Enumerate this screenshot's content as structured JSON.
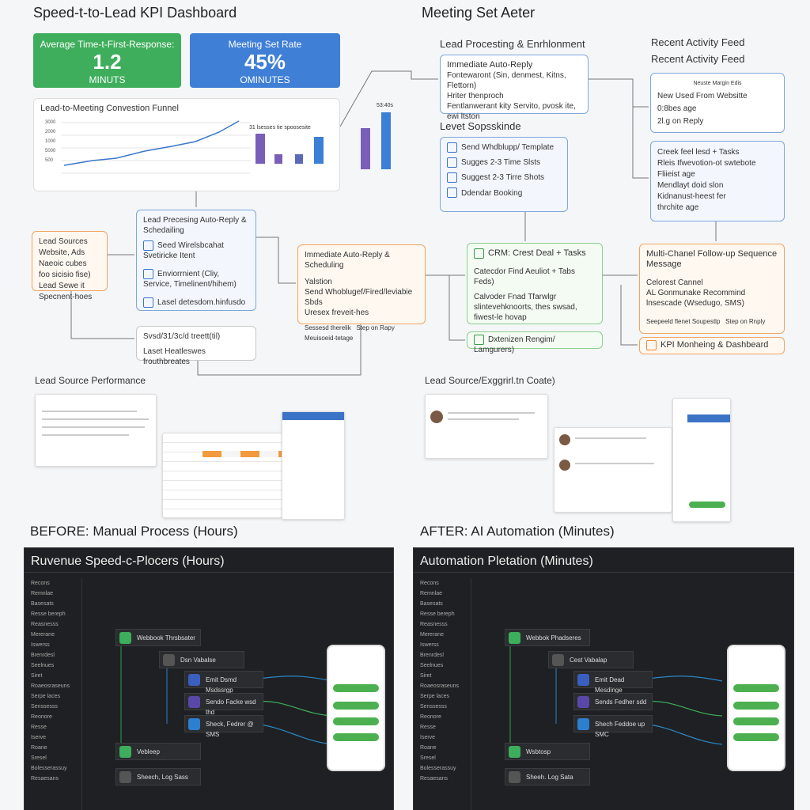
{
  "header": {
    "title": "Speed-t-to-Lead KPI Dashboard",
    "right_title": "Meeting Set Aeter"
  },
  "kpis": [
    {
      "label": "Average Time-t-First-Response:",
      "value": "1.2",
      "unit": "MINUTS"
    },
    {
      "label": "Meeting Set Rate",
      "value": "45%",
      "unit": "OMINUTES"
    }
  ],
  "funnel": {
    "title": "Lead-to-Meeting Convestion Funnel",
    "y_labels": [
      "3000",
      "2000",
      "1000",
      "5000",
      "500"
    ],
    "bar_caption": "31 lsesses tie spoosesite",
    "side_caption": "53:40s"
  },
  "left_flow": {
    "sources": {
      "lines": [
        "Lead Sources",
        "Website, Ads",
        "Naeoic cubes",
        "foo sicisio fise)",
        "Lead Sewe it",
        "Specnent-hoes"
      ]
    },
    "processing": {
      "title": "Lead Precesing Auto-Reply & Schedailing",
      "items": [
        "Seed Wirelsbcahat Svetiricke Itent",
        "Enviorrnient (Cliy, Service, Timelinent/hihem)",
        "Lasel detesdom.hinfusdo"
      ]
    },
    "log": {
      "items": [
        "Svsd/31/3c/d treett(til)",
        "Laset Heatleswes frouthbreates"
      ]
    },
    "immediate": {
      "title": "Immediate Auto-Reply & Scheduling",
      "items": [
        "Yalstion",
        "Send Whoblugef/Fired/leviabie Sbds",
        "Uresex freveit-hes"
      ],
      "footer": [
        "Sessesd therelik",
        "Step on Rapy",
        "Meuisoeid-tetage"
      ]
    }
  },
  "right_flow": {
    "enrich_title": "Lead Procesting & Enrhlonment",
    "enrich": {
      "title": "Immediate Auto-Reply",
      "lines": [
        "Fontewaront (Sin, denmest, Kitns, Flettorn)",
        "Hriter thenproch",
        "Fentlanwerant kity Servito, pvosk ite,",
        "ewi ltston"
      ]
    },
    "schedule_title": "Levet Sopsskinde",
    "schedule": {
      "items": [
        "Send Whdblupp/ Template",
        "Sugges 2-3 Time Slsts",
        "Suggest 2-3 Tirre Shots",
        "Ddendar Booking"
      ]
    },
    "feed_titles": [
      "Recent Activity Feed",
      "Recent Activity Feed"
    ],
    "feed1": {
      "head": "Neuste Margin Edis",
      "lines": [
        "New Used From Websitte",
        "0:8bes age",
        "2l.g on Reply"
      ]
    },
    "feed2": {
      "lines": [
        "Creek feel lesd + Tasks",
        "Rleis Ifwevotion-ot swtebote",
        "Fliieist age",
        "Mendlayt doid slon",
        "Kidnanust-heest fer",
        "thrchite age"
      ]
    },
    "crm": {
      "title": "CRM: Crest Deal + Tasks",
      "items": [
        "Catecdor Find Aeuliot + Tabs Feds)",
        "Calvoder Fnad Tfarwlgr slintevehknoorts, thes swsad, fiwest-le hovap"
      ]
    },
    "crm_footer": "Dxtenizen Rengim/ Lamgurers)",
    "multi": {
      "title": "Multi-Chanel Follow-up Sequence Message",
      "lines": [
        "Celorest Cannel",
        "AL Gonmunake Recommind lnsescade (Wsedugo, SMS)"
      ],
      "footer": [
        "Seepeeld flenet Soupestlp",
        "Step on Rnply"
      ]
    },
    "kpi_footer": "KPI Monheing & Dashbeard"
  },
  "middle": {
    "left_title": "Lead Source Performance",
    "right_title": "Lead Source/Exggrirl.tn Coate)"
  },
  "before": {
    "caption": "BEFORE: Manual Process (Hours)",
    "panel_title": "Ruvenue Speed-c-Plocers (Hours)",
    "nodes": [
      "Webbook Thrsbsater",
      "Dsn Vabalse",
      "Emit Dsmd Msdssrgp",
      "Sendo Facke wsd thd",
      "Sheck, Fedrer @ SMS",
      "Vebleep",
      "Sheech, Log Sass"
    ]
  },
  "after": {
    "caption": "AFTER: AI Automation (Minutes)",
    "panel_title": "Automation Pletation (Minutes)",
    "nodes": [
      "Webbok Phadseres",
      "Cest Vabalap",
      "Emit Dead Mesdinge",
      "Sends Fedher sdd",
      "Shech Feddoe up SMC",
      "Wsbtosp",
      "Sheeh. Log Sata"
    ]
  },
  "sidebar": [
    "Recons",
    "Remnlae",
    "Basesats",
    "Resse bereph",
    "Reasnesss",
    "Mererane",
    "Iswerss",
    "Brenrdesl",
    "Seelnues",
    "Siret",
    "Roaeosraseuns",
    "Serpe laces",
    "Senssesss",
    "Reonore",
    "Resse",
    "Iserve",
    "Roane",
    "Sresel",
    "Bolesserassuy",
    "Resaesans"
  ]
}
